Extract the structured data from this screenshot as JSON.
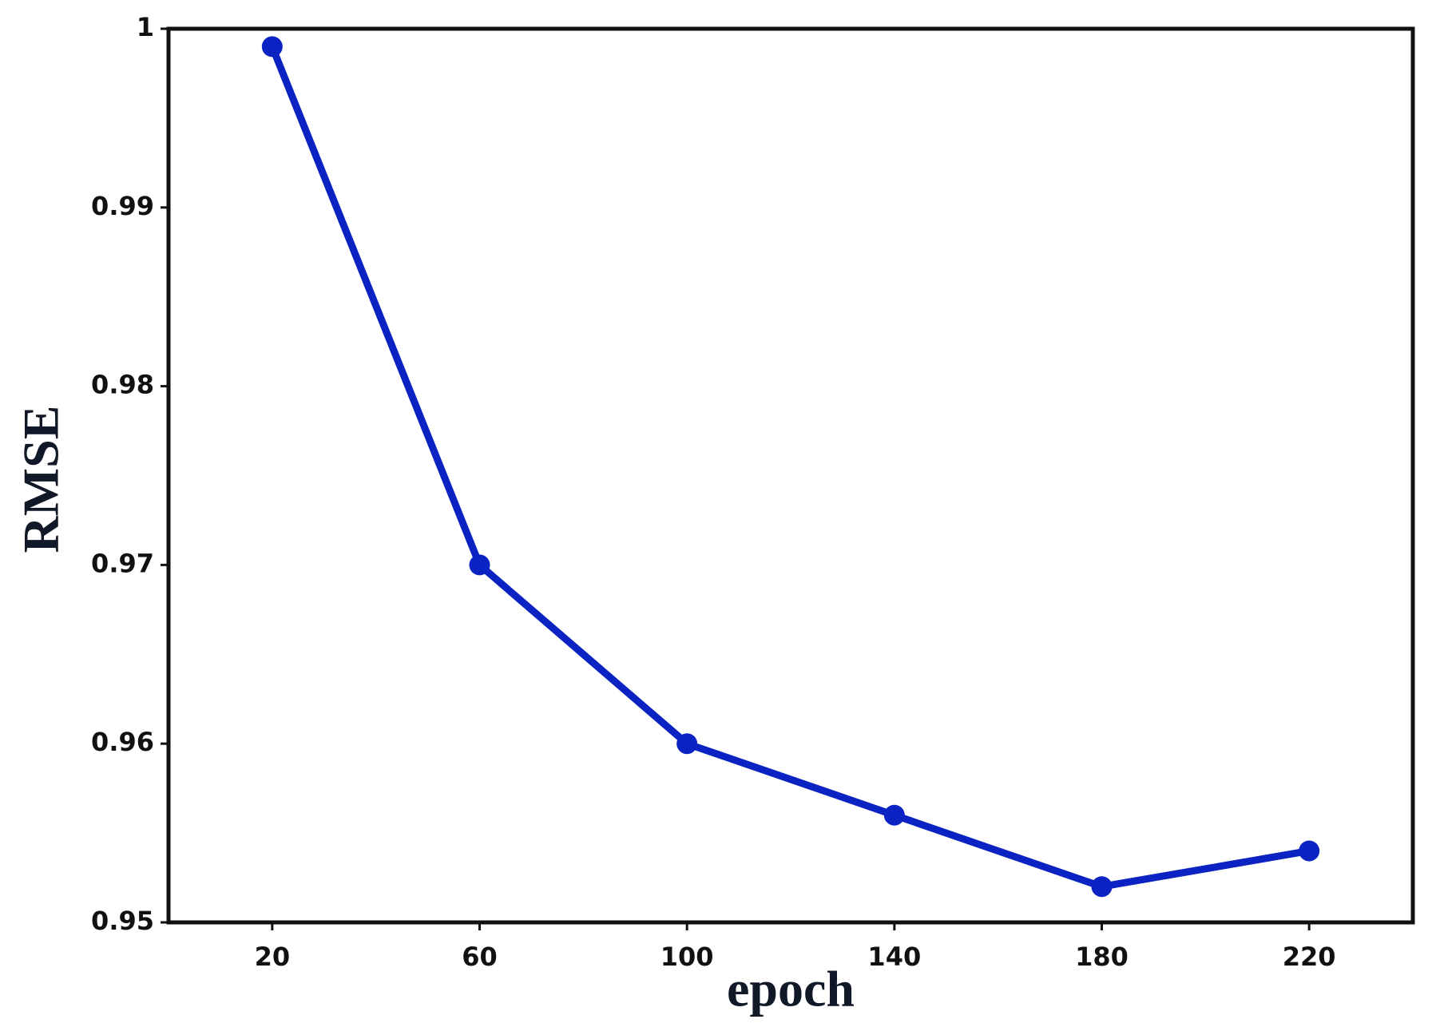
{
  "chart_data": {
    "type": "line",
    "x_label": "epoch",
    "y_label": "RMSE",
    "x": [
      20,
      60,
      100,
      140,
      180,
      220
    ],
    "series": [
      {
        "color": "#0a23c2",
        "values": [
          0.999,
          0.97,
          0.96,
          0.956,
          0.952,
          0.954
        ]
      }
    ],
    "xlim": [
      0,
      240
    ],
    "xticks": [
      20,
      60,
      100,
      140,
      180,
      220
    ],
    "ylim": [
      0.95,
      1
    ],
    "yticks": [
      0.95,
      0.96,
      0.97,
      0.98,
      0.99,
      1
    ]
  }
}
